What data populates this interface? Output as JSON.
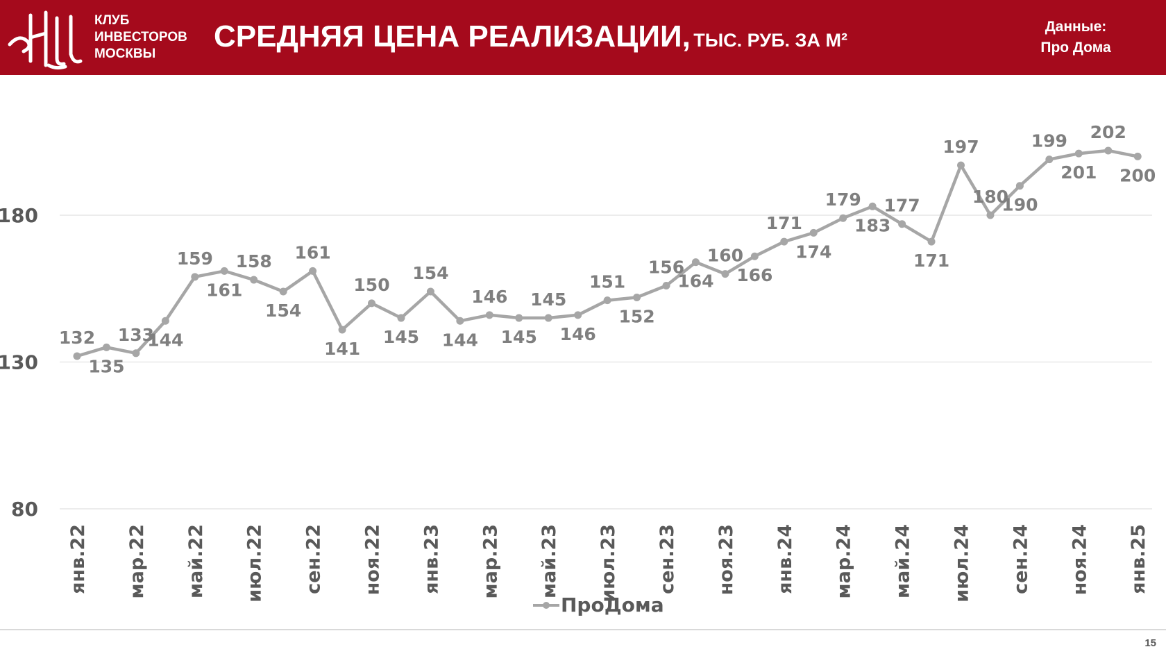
{
  "header": {
    "club_lines": [
      "КЛУБ",
      "ИНВЕСТОРОВ",
      "МОСКВЫ"
    ],
    "title_main": "СРЕДНЯЯ ЦЕНА РЕАЛИЗАЦИИ,",
    "title_sub": "ТЫС. РУБ. ЗА М²",
    "source_line1": "Данные:",
    "source_line2": "Про Дома",
    "brand_color": "#a50a1c"
  },
  "page_number": "15",
  "chart_data": {
    "type": "line",
    "title": "",
    "xlabel": "",
    "ylabel": "",
    "ylim": [
      80,
      220
    ],
    "yticks": [
      80,
      130,
      180
    ],
    "grid": true,
    "legend_position": "bottom",
    "x": [
      "янв.22",
      "фев.22",
      "мар.22",
      "апр.22",
      "май.22",
      "июн.22",
      "июл.22",
      "авг.22",
      "сен.22",
      "окт.22",
      "ноя.22",
      "дек.22",
      "янв.23",
      "фев.23",
      "мар.23",
      "апр.23",
      "май.23",
      "июн.23",
      "июл.23",
      "авг.23",
      "сен.23",
      "окт.23",
      "ноя.23",
      "дек.23",
      "янв.24",
      "фев.24",
      "мар.24",
      "апр.24",
      "май.24",
      "июн.24",
      "июл.24",
      "авг.24",
      "сен.24",
      "окт.24",
      "ноя.24",
      "дек.24",
      "янв.25"
    ],
    "xtick_labels": [
      "янв.22",
      "мар.22",
      "май.22",
      "июл.22",
      "сен.22",
      "ноя.22",
      "янв.23",
      "мар.23",
      "май.23",
      "июл.23",
      "сен.23",
      "ноя.23",
      "янв.24",
      "мар.24",
      "май.24",
      "июл.24",
      "сен.24",
      "ноя.24",
      "янв.25"
    ],
    "series": [
      {
        "name": "ПроДома",
        "color": "#a6a6a6",
        "values": [
          132,
          135,
          133,
          144,
          159,
          161,
          158,
          154,
          161,
          141,
          150,
          145,
          154,
          144,
          146,
          145,
          145,
          146,
          151,
          152,
          156,
          164,
          160,
          166,
          171,
          174,
          179,
          183,
          177,
          171,
          197,
          180,
          190,
          199,
          201,
          202,
          200
        ]
      }
    ],
    "label_positions": [
      "above",
      "below",
      "above",
      "below",
      "above",
      "below",
      "above",
      "below",
      "above",
      "below",
      "above",
      "below",
      "above",
      "below",
      "above",
      "below",
      "above",
      "below",
      "above",
      "below",
      "above",
      "below",
      "above",
      "below",
      "above",
      "below",
      "above",
      "below",
      "above",
      "below",
      "above",
      "above",
      "below",
      "above",
      "below",
      "above",
      "below"
    ]
  }
}
